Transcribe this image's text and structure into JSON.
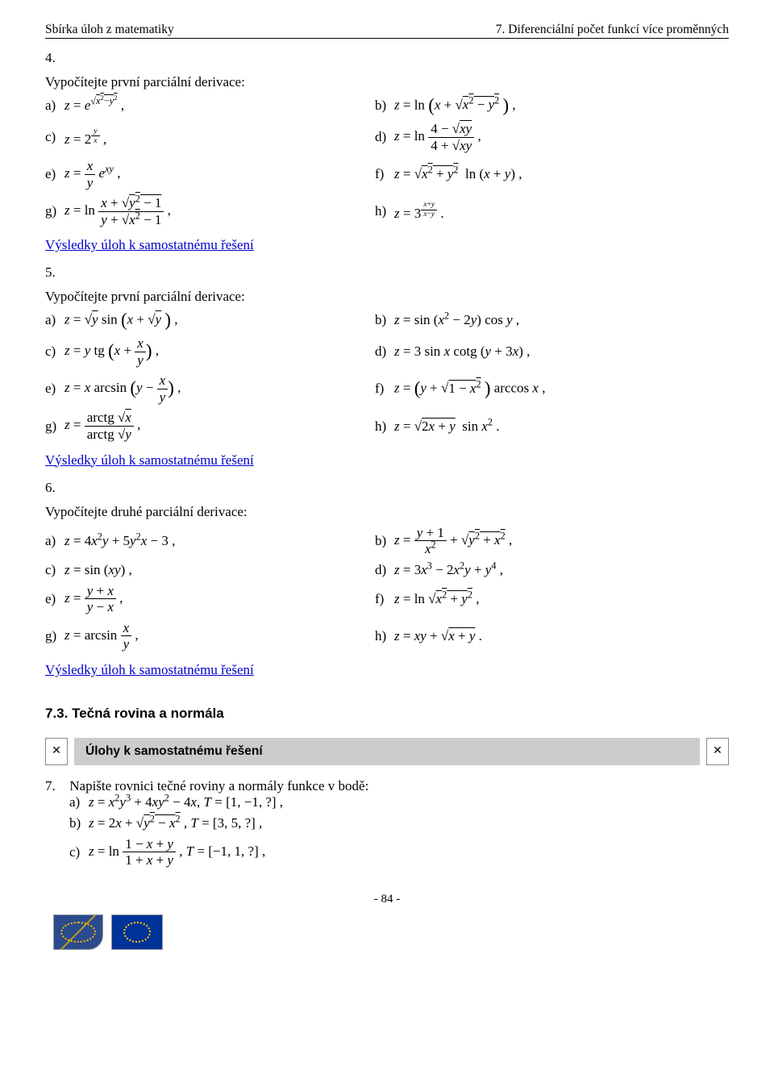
{
  "header": {
    "left": "Sbírka úloh z matematiky",
    "right": "7. Diferenciální počet funkcí více proměnných"
  },
  "link_text": "Výsledky úloh k samostatnému řešení",
  "ex4": {
    "num": "4.",
    "title": "Vypočítejte první parciální derivace:",
    "a_lbl": "a)",
    "b_lbl": "b)",
    "c_lbl": "c)",
    "d_lbl": "d)",
    "e_lbl": "e)",
    "f_lbl": "f)",
    "g_lbl": "g)",
    "h_lbl": "h)"
  },
  "ex5": {
    "num": "5.",
    "title": "Vypočítejte první parciální derivace:",
    "a_lbl": "a)",
    "b_lbl": "b)",
    "c_lbl": "c)",
    "d_lbl": "d)",
    "e_lbl": "e)",
    "f_lbl": "f)",
    "g_lbl": "g)",
    "h_lbl": "h)"
  },
  "ex6": {
    "num": "6.",
    "title": "Vypočítejte druhé parciální derivace:",
    "a_lbl": "a)",
    "b_lbl": "b)",
    "c_lbl": "c)",
    "d_lbl": "d)",
    "e_lbl": "e)",
    "f_lbl": "f)",
    "g_lbl": "g)",
    "h_lbl": "h)"
  },
  "section73": {
    "heading": "7.3.  Tečná rovina a normála"
  },
  "box": {
    "label": "Úlohy k samostatnému řešení",
    "chip": "✕"
  },
  "ex7": {
    "num": "7.",
    "title": "Napište rovnici tečné roviny a normály funkce v bodě:",
    "a_lbl": "a)",
    "b_lbl": "b)",
    "c_lbl": "c)"
  },
  "footer": {
    "page": "- 84 -"
  },
  "colors": {
    "link": "#0000cc",
    "bar": "#cccccc",
    "logo_blue": "#003399",
    "logo_gold": "#ffcc00"
  }
}
